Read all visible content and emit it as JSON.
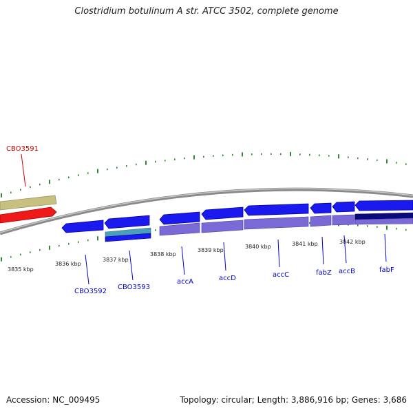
{
  "title": "Clostridium botulinum A str. ATCC 3502, complete genome",
  "accession_label": "Accession: NC_009495",
  "topology_label": "Topology: circular; Length: 3,886,916 bp; Genes: 3,686",
  "colors": {
    "backbone": "#8a8a8a",
    "tick": "#2e8b2e",
    "cds_forward": "#1a1aee",
    "cds_light": "#7a6ad6",
    "cds_teal": "#4aa0b8",
    "cds_dark": "#0a0a7a",
    "reverse_gene": "#ee1a1a",
    "reverse_gene_bar": "#c8c080",
    "label_blue": "#0000cc",
    "label_red": "#cc0000"
  },
  "scale_labels": [
    "3835 kbp",
    "3836 kbp",
    "3837 kbp",
    "3838 kbp",
    "3839 kbp",
    "3840 kbp",
    "3841 kbp",
    "3842 kbp"
  ],
  "genes": [
    {
      "name": "CBO3591",
      "strand": "reverse"
    },
    {
      "name": "CBO3592",
      "strand": "forward"
    },
    {
      "name": "CBO3593",
      "strand": "forward"
    },
    {
      "name": "accA",
      "strand": "forward"
    },
    {
      "name": "accD",
      "strand": "forward"
    },
    {
      "name": "accC",
      "strand": "forward"
    },
    {
      "name": "fabZ",
      "strand": "forward"
    },
    {
      "name": "accB",
      "strand": "forward"
    },
    {
      "name": "fabF",
      "strand": "forward"
    }
  ]
}
